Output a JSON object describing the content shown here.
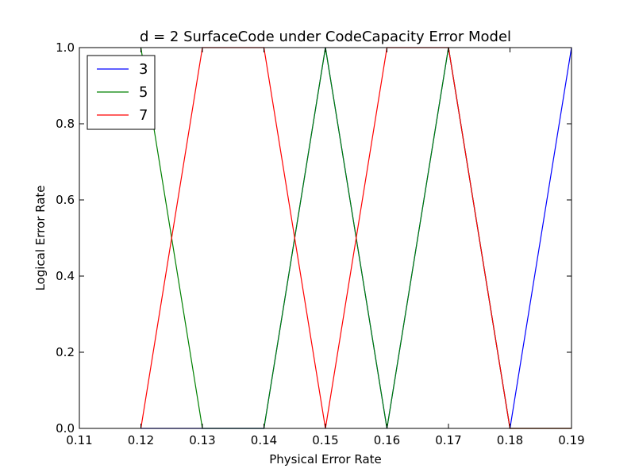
{
  "chart_data": {
    "type": "line",
    "title": "d = 2 SurfaceCode under CodeCapacity Error Model",
    "xlabel": "Physical Error Rate",
    "ylabel": "Logical Error Rate",
    "xlim": [
      0.11,
      0.19
    ],
    "ylim": [
      0.0,
      1.0
    ],
    "x_ticks": [
      "0.11",
      "0.12",
      "0.13",
      "0.14",
      "0.15",
      "0.16",
      "0.17",
      "0.18",
      "0.19"
    ],
    "y_ticks": [
      "0.0",
      "0.2",
      "0.4",
      "0.6",
      "0.8",
      "1.0"
    ],
    "x": [
      0.12,
      0.13,
      0.14,
      0.15,
      0.16,
      0.17,
      0.18,
      0.19
    ],
    "grid": false,
    "legend_position": "top-left",
    "series": [
      {
        "name": "3",
        "color": "#0000ff",
        "values": [
          0,
          0,
          0,
          1,
          0,
          1,
          0,
          1
        ]
      },
      {
        "name": "5",
        "color": "#008000",
        "values": [
          1,
          0,
          0,
          1,
          0,
          1,
          0,
          0
        ]
      },
      {
        "name": "7",
        "color": "#ff0000",
        "values": [
          0,
          1,
          1,
          0,
          1,
          1,
          0,
          0
        ]
      }
    ]
  }
}
